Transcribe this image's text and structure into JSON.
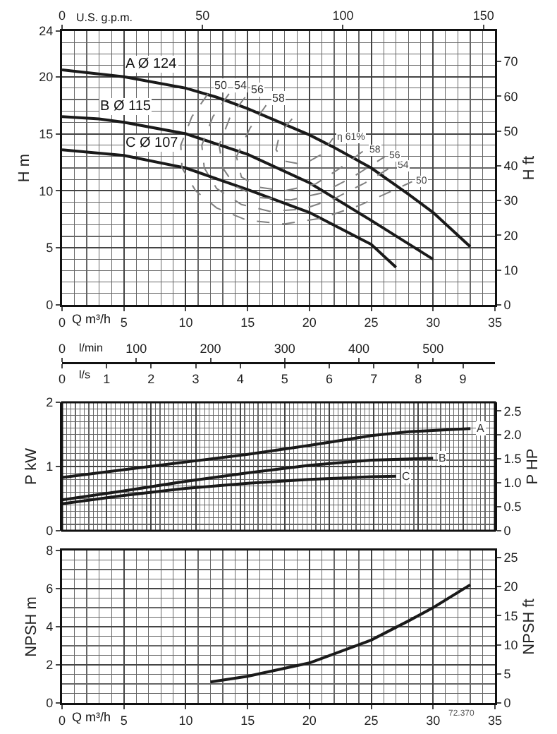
{
  "chart_data": [
    {
      "type": "line",
      "xlabel": "Q m³/h",
      "ylabel": "H m",
      "y2label": "H ft",
      "x2label": "U.S. g.p.m.",
      "xlim": [
        0,
        35
      ],
      "xticks": [
        0,
        5,
        10,
        15,
        20,
        25,
        30,
        35
      ],
      "ylim": [
        0,
        24
      ],
      "yticks": [
        0,
        5,
        10,
        15,
        20,
        24
      ],
      "y2lim": [
        0,
        78.7
      ],
      "y2ticks": [
        0,
        10,
        20,
        30,
        40,
        50,
        60,
        70
      ],
      "x2lim": [
        0,
        154.1
      ],
      "x2ticks": [
        0,
        50,
        100,
        150
      ],
      "grid": true,
      "series": [
        {
          "name": "A Ø 124",
          "color": "#1a1a1a",
          "x": [
            0,
            5,
            10,
            12.5,
            15,
            20,
            22,
            25,
            28,
            30,
            33
          ],
          "values": [
            20.6,
            20,
            19,
            18.2,
            17.2,
            14.9,
            13.8,
            12,
            9.7,
            8.1,
            5.1
          ]
        },
        {
          "name": "B Ø 115",
          "color": "#1a1a1a",
          "x": [
            0,
            3,
            5,
            10,
            15,
            20,
            25,
            30
          ],
          "values": [
            16.5,
            16.3,
            16,
            15,
            13.2,
            10.7,
            7.4,
            4
          ]
        },
        {
          "name": "C Ø 107",
          "color": "#1a1a1a",
          "x": [
            0,
            5,
            10,
            15,
            20,
            25,
            27
          ],
          "values": [
            13.6,
            13.1,
            12,
            10.1,
            8.1,
            5.3,
            3.3
          ]
        },
        {
          "name": "50",
          "color": "#808080",
          "line_style": "dashed",
          "x": [
            11.8,
            10.5,
            9.6,
            9.7,
            10.8,
            12.5,
            15,
            18,
            21,
            24,
            26.5,
            28.3
          ],
          "values": [
            18.5,
            16.5,
            14,
            12,
            10,
            8.5,
            7.4,
            7.1,
            7.6,
            8.7,
            9.9,
            10.8
          ]
        },
        {
          "name": "54",
          "color": "#808080",
          "line_style": "dashed",
          "x": [
            13.5,
            12.2,
            11.3,
            11.5,
            12.5,
            14.5,
            16.8,
            19.5,
            22,
            24.5,
            26.8
          ],
          "values": [
            18.5,
            16.5,
            14,
            12,
            10.2,
            8.8,
            8.2,
            8.4,
            9.3,
            10.7,
            12.2
          ]
        },
        {
          "name": "56",
          "color": "#808080",
          "line_style": "dashed",
          "x": [
            14.8,
            13.6,
            12.7,
            13,
            14,
            16,
            18.5,
            21,
            23.5,
            26.1
          ],
          "values": [
            18.2,
            16.5,
            14,
            12,
            10.4,
            9.4,
            9.2,
            9.8,
            11.2,
            13
          ]
        },
        {
          "name": "58",
          "color": "#808080",
          "line_style": "dashed",
          "x": [
            16.5,
            15.2,
            14.1,
            14.5,
            16,
            18,
            20.5,
            22.5,
            24.5
          ],
          "values": [
            17.5,
            15.5,
            13,
            11.2,
            10.3,
            10,
            10.6,
            12,
            13.6
          ]
        },
        {
          "name": "η 61%",
          "color": "#808080",
          "line_style": "dashed",
          "x": [
            18.6,
            17.6,
            17.3,
            18,
            19.5,
            21,
            21.9
          ],
          "values": [
            16.3,
            15,
            13.6,
            12.6,
            12.3,
            13.2,
            14.6
          ]
        }
      ],
      "annotations": [
        {
          "text": "50",
          "x": 11.8,
          "y": 18.5
        },
        {
          "text": "54",
          "x": 13.5,
          "y": 18.5
        },
        {
          "text": "56",
          "x": 14.8,
          "y": 18.2
        },
        {
          "text": "58",
          "x": 16.5,
          "y": 17.5
        }
      ]
    },
    {
      "type": "line",
      "xlabel": "l/s",
      "ylabel": "P kW",
      "y2label": "P HP",
      "x2label": "l/min",
      "xlim": [
        0,
        9.72
      ],
      "xticks": [
        0,
        1,
        2,
        3,
        4,
        5,
        6,
        7,
        8,
        9
      ],
      "ylim": [
        0,
        2
      ],
      "yticks": [
        0,
        1,
        2
      ],
      "y2lim": [
        0,
        2.68
      ],
      "y2ticks": [
        0,
        0.5,
        {
          "value": 1,
          "label": "1.0"
        },
        1.5,
        {
          "value": 2,
          "label": "2.0"
        },
        2.5
      ],
      "x2lim": [
        0,
        583.3
      ],
      "x2ticks": [
        0,
        100,
        200,
        300,
        400,
        500
      ],
      "grid": true,
      "series": [
        {
          "color": "#1a1a1a",
          "x": [
            0,
            1.39,
            2.78,
            4.17,
            5.56,
            6.94,
            7.78,
            9.17
          ],
          "values": [
            0.83,
            0.95,
            1.07,
            1.19,
            1.33,
            1.48,
            1.54,
            1.59
          ]
        },
        {
          "color": "#1a1a1a",
          "x": [
            0,
            1.39,
            2.78,
            4.17,
            5.56,
            6.94,
            8.33
          ],
          "values": [
            0.48,
            0.62,
            0.77,
            0.9,
            1.02,
            1.1,
            1.13
          ]
        },
        {
          "color": "#1a1a1a",
          "x": [
            0,
            1.39,
            2.78,
            4.17,
            5.56,
            6.94,
            7.5
          ],
          "values": [
            0.42,
            0.55,
            0.66,
            0.74,
            0.8,
            0.84,
            0.85
          ]
        }
      ],
      "annotations": [
        {
          "text": "A",
          "x": 9.17,
          "y": 1.59
        },
        {
          "text": "B",
          "x": 8.33,
          "y": 1.13
        },
        {
          "text": "C",
          "x": 7.5,
          "y": 0.85
        }
      ]
    },
    {
      "type": "line",
      "xlabel": "Q m³/h",
      "ylabel": "NPSH m",
      "y2label": "NPSH ft",
      "xlim": [
        0,
        35
      ],
      "xticks": [
        0,
        5,
        10,
        15,
        20,
        25,
        30,
        35
      ],
      "ylim": [
        0,
        8
      ],
      "yticks": [
        0,
        2,
        4,
        6,
        8
      ],
      "y2lim": [
        0,
        26.2
      ],
      "y2ticks": [
        0,
        5,
        10,
        15,
        20,
        25
      ],
      "grid": true,
      "series": [
        {
          "color": "#1a1a1a",
          "x": [
            12,
            15,
            20,
            25,
            28,
            30,
            33
          ],
          "values": [
            1.1,
            1.4,
            2.1,
            3.3,
            4.3,
            5,
            6.2
          ]
        }
      ],
      "annotations": [
        "72.370"
      ]
    }
  ]
}
